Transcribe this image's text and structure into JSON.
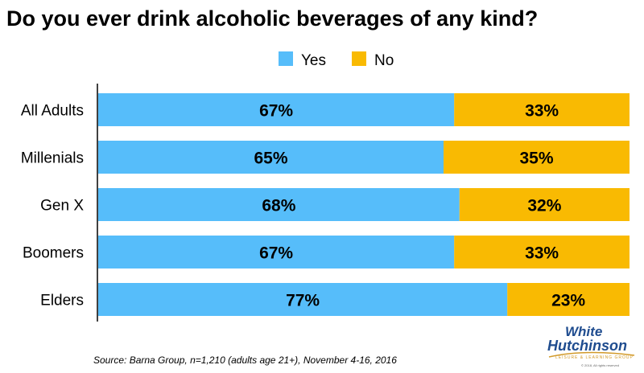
{
  "chart_data": {
    "type": "bar",
    "orientation": "horizontal",
    "stacked": true,
    "title": "Do you ever drink alcoholic beverages of any kind?",
    "categories": [
      "All Adults",
      "Millenials",
      "Gen X",
      "Boomers",
      "Elders"
    ],
    "series": [
      {
        "name": "Yes",
        "values": [
          67,
          65,
          68,
          67,
          77
        ],
        "labels": [
          "67%",
          "65%",
          "68%",
          "67%",
          "77%"
        ],
        "color": "#56BDFA"
      },
      {
        "name": "No",
        "values": [
          33,
          35,
          32,
          33,
          23
        ],
        "labels": [
          "33%",
          "35%",
          "32%",
          "33%",
          "23%"
        ],
        "color": "#F9BA02"
      }
    ],
    "xlim": [
      0,
      100
    ],
    "legend_position": "top-center",
    "grid": false
  },
  "source": "Source: Barna Group, n=1,210 (adults age 21+), November 4-16, 2016",
  "logo": {
    "line1": "White",
    "line2": "Hutchinson",
    "tagline": "LEISURE & LEARNING GROUP",
    "copyright": "© 2018, All rights reserved"
  }
}
